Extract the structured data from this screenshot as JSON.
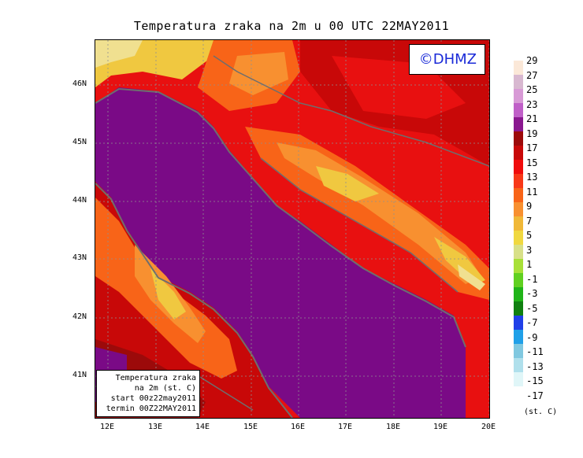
{
  "title": "Temperatura zraka na 2m u 00 UTC 22MAY2011",
  "brand": "©DHMZ",
  "info_box": {
    "line1": "Temperatura zraka",
    "line2": "na 2m (st. C)",
    "line3": "start 00z22may2011",
    "line4": "termin 00Z22MAY2011"
  },
  "lat_labels": [
    "46N",
    "45N",
    "44N",
    "43N",
    "42N",
    "41N"
  ],
  "lon_labels": [
    "12E",
    "13E",
    "14E",
    "15E",
    "16E",
    "17E",
    "18E",
    "19E",
    "20E"
  ],
  "colorbar": {
    "labels": [
      "29",
      "27",
      "25",
      "23",
      "21",
      "19",
      "17",
      "15",
      "13",
      "11",
      "9",
      "7",
      "5",
      "3",
      "1",
      "-1",
      "-3",
      "-5",
      "-7",
      "-9",
      "-11",
      "-13",
      "-15",
      "-17"
    ],
    "colors": [
      "#fbe8d8",
      "#d8b8d0",
      "#d89ad6",
      "#c060c8",
      "#8a1890",
      "#9c0a0a",
      "#c80808",
      "#f00c0c",
      "#f83818",
      "#f86418",
      "#f89030",
      "#f0b838",
      "#f0d840",
      "#d8e088",
      "#a8e038",
      "#60d020",
      "#20b418",
      "#108010",
      "#2040e8",
      "#20a0e8",
      "#80c8e0",
      "#b0e0ec",
      "#e0f6f8"
    ],
    "unit": "(st. C)"
  },
  "map_colors": {
    "sea": "#7a0a86",
    "warm_coast": "#a00a0a",
    "red": "#e81010",
    "orange": "#f86418",
    "light_orange": "#f89030",
    "yellow": "#f0c840",
    "pale": "#f0e090",
    "coastline": "#6e6e6e"
  }
}
